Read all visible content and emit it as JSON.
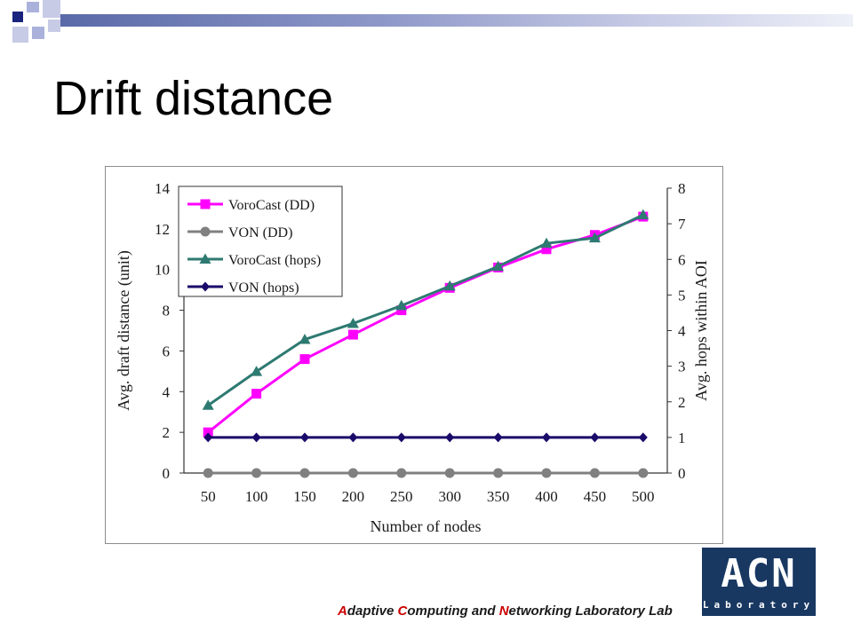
{
  "slide": {
    "title": "Drift distance",
    "footer": {
      "parts": [
        {
          "text": "A",
          "highlight": true
        },
        {
          "text": "daptive ",
          "highlight": false
        },
        {
          "text": "C",
          "highlight": true
        },
        {
          "text": "omputing and ",
          "highlight": false
        },
        {
          "text": "N",
          "highlight": true
        },
        {
          "text": "etworking Laboratory Lab",
          "highlight": false
        }
      ],
      "highlight_color": "#cc0000"
    },
    "logo": {
      "big": "ACN",
      "small": "Laboratory",
      "color": "#183862"
    }
  },
  "chart_data": {
    "type": "line",
    "title": "",
    "xlabel": "Number of nodes",
    "ylabel_left": "Avg. draft distance (unit)",
    "ylabel_right": "Avg. hops within AOI",
    "x": [
      50,
      100,
      150,
      200,
      250,
      300,
      350,
      400,
      450,
      500
    ],
    "ylim_left": [
      0,
      14
    ],
    "yticks_left": [
      0,
      2,
      4,
      6,
      8,
      10,
      12,
      14
    ],
    "ylim_right": [
      0,
      8
    ],
    "yticks_right": [
      0,
      1,
      2,
      3,
      4,
      5,
      6,
      7,
      8
    ],
    "grid": false,
    "legend_position": "top-left",
    "series": [
      {
        "name": "VoroCast (DD)",
        "axis": "left",
        "marker": "square",
        "color": "#ff00ff",
        "values": [
          2.0,
          3.9,
          5.6,
          6.8,
          8.0,
          9.1,
          10.1,
          11.0,
          11.7,
          12.6
        ]
      },
      {
        "name": "VON (DD)",
        "axis": "left",
        "marker": "circle",
        "color": "#808080",
        "values": [
          0,
          0,
          0,
          0,
          0,
          0,
          0,
          0,
          0,
          0
        ]
      },
      {
        "name": "VoroCast (hops)",
        "axis": "right",
        "marker": "triangle",
        "color": "#2e7a72",
        "values": [
          1.9,
          2.85,
          3.75,
          4.2,
          4.7,
          5.25,
          5.8,
          6.45,
          6.6,
          7.25
        ]
      },
      {
        "name": "VON (hops)",
        "axis": "right",
        "marker": "diamond",
        "color": "#1a0a6a",
        "values": [
          1,
          1,
          1,
          1,
          1,
          1,
          1,
          1,
          1,
          1
        ]
      }
    ]
  }
}
